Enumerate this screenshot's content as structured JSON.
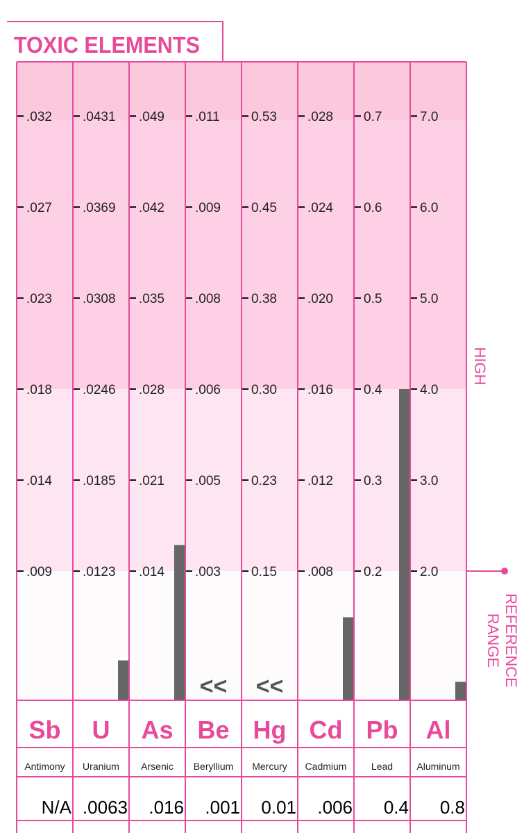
{
  "title": "TOXIC ELEMENTS",
  "zone_labels": {
    "high": "HIGH",
    "reference": "REFERENCE RANGE"
  },
  "colors": {
    "accent": "#e84a9a",
    "high_top": "#fcc8dc",
    "high": "#fdd0e6",
    "mid": "#fde6f1",
    "reference": "#fdfbfc",
    "bar": "#666666",
    "text": "#222222"
  },
  "chart_data": {
    "type": "bar",
    "title": "TOXIC ELEMENTS",
    "elements": [
      {
        "symbol": "Sb",
        "name": "Antimony",
        "result": "N/A",
        "value": null,
        "below_range": false,
        "ticks": [
          ".009",
          ".014",
          ".018",
          ".023",
          ".027",
          ".032"
        ]
      },
      {
        "symbol": "U",
        "name": "Uranium",
        "result": ".0063",
        "value": 0.0063,
        "below_range": false,
        "ticks": [
          ".0123",
          ".0185",
          ".0246",
          ".0308",
          ".0369",
          ".0431"
        ]
      },
      {
        "symbol": "As",
        "name": "Arsenic",
        "result": ".016",
        "value": 0.016,
        "below_range": false,
        "ticks": [
          ".014",
          ".021",
          ".028",
          ".035",
          ".042",
          ".049"
        ]
      },
      {
        "symbol": "Be",
        "name": "Beryllium",
        "result": ".001",
        "value": 0.001,
        "below_range": true,
        "ticks": [
          ".003",
          ".005",
          ".006",
          ".008",
          ".009",
          ".011"
        ]
      },
      {
        "symbol": "Hg",
        "name": "Mercury",
        "result": "0.01",
        "value": 0.01,
        "below_range": true,
        "ticks": [
          "0.15",
          "0.23",
          "0.30",
          "0.38",
          "0.45",
          "0.53"
        ]
      },
      {
        "symbol": "Cd",
        "name": "Cadmium",
        "result": ".006",
        "value": 0.006,
        "below_range": false,
        "ticks": [
          ".008",
          ".012",
          ".016",
          ".020",
          ".024",
          ".028"
        ]
      },
      {
        "symbol": "Pb",
        "name": "Lead",
        "result": "0.4",
        "value": 0.4,
        "below_range": false,
        "ticks": [
          "0.2",
          "0.3",
          "0.4",
          "0.5",
          "0.6",
          "0.7"
        ]
      },
      {
        "symbol": "Al",
        "name": "Aluminum",
        "result": "0.8",
        "value": 0.8,
        "below_range": false,
        "ticks": [
          "2.0",
          "3.0",
          "4.0",
          "5.0",
          "6.0",
          "7.0"
        ]
      }
    ],
    "below_range_marker": "<<"
  }
}
